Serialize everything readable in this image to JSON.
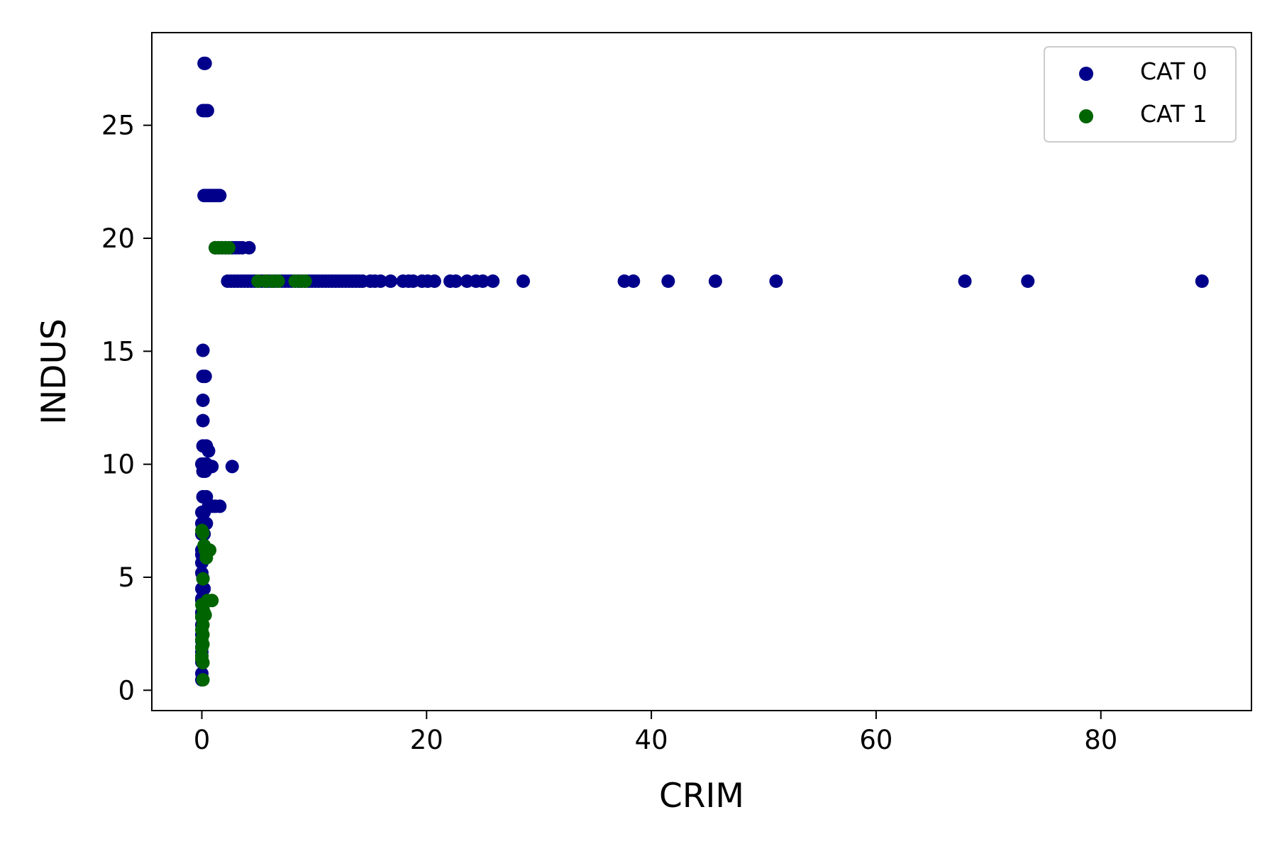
{
  "chart_data": {
    "type": "scatter",
    "title": "",
    "xlabel": "CRIM",
    "ylabel": "INDUS",
    "xlim": [
      -4.45,
      93.4
    ],
    "ylim": [
      -0.9,
      29.1
    ],
    "xticks": [
      0,
      20,
      40,
      60,
      80
    ],
    "yticks": [
      0,
      5,
      10,
      15,
      20,
      25
    ],
    "grid": false,
    "legend_position": "top-right",
    "series": [
      {
        "name": "CAT 0",
        "color": "#00008b",
        "points": [
          [
            0.2,
            27.74
          ],
          [
            0.3,
            27.74
          ],
          [
            0.1,
            25.65
          ],
          [
            0.3,
            25.65
          ],
          [
            0.5,
            25.65
          ],
          [
            0.2,
            21.89
          ],
          [
            0.4,
            21.89
          ],
          [
            0.6,
            21.89
          ],
          [
            0.8,
            21.89
          ],
          [
            1.0,
            21.89
          ],
          [
            1.2,
            21.89
          ],
          [
            1.4,
            21.89
          ],
          [
            1.6,
            21.89
          ],
          [
            1.2,
            19.58
          ],
          [
            1.5,
            19.58
          ],
          [
            1.8,
            19.58
          ],
          [
            2.1,
            19.58
          ],
          [
            2.4,
            19.58
          ],
          [
            2.7,
            19.58
          ],
          [
            3.0,
            19.58
          ],
          [
            3.3,
            19.58
          ],
          [
            3.6,
            19.58
          ],
          [
            4.2,
            19.58
          ],
          [
            2.3,
            18.1
          ],
          [
            2.6,
            18.1
          ],
          [
            2.9,
            18.1
          ],
          [
            3.2,
            18.1
          ],
          [
            3.5,
            18.1
          ],
          [
            3.8,
            18.1
          ],
          [
            4.1,
            18.1
          ],
          [
            4.4,
            18.1
          ],
          [
            4.7,
            18.1
          ],
          [
            5.0,
            18.1
          ],
          [
            5.3,
            18.1
          ],
          [
            5.6,
            18.1
          ],
          [
            5.9,
            18.1
          ],
          [
            6.2,
            18.1
          ],
          [
            6.5,
            18.1
          ],
          [
            6.8,
            18.1
          ],
          [
            7.1,
            18.1
          ],
          [
            7.4,
            18.1
          ],
          [
            7.7,
            18.1
          ],
          [
            8.0,
            18.1
          ],
          [
            8.3,
            18.1
          ],
          [
            8.6,
            18.1
          ],
          [
            8.9,
            18.1
          ],
          [
            9.2,
            18.1
          ],
          [
            9.5,
            18.1
          ],
          [
            9.8,
            18.1
          ],
          [
            10.1,
            18.1
          ],
          [
            10.4,
            18.1
          ],
          [
            10.7,
            18.1
          ],
          [
            11.0,
            18.1
          ],
          [
            11.3,
            18.1
          ],
          [
            11.6,
            18.1
          ],
          [
            11.9,
            18.1
          ],
          [
            12.2,
            18.1
          ],
          [
            12.5,
            18.1
          ],
          [
            12.8,
            18.1
          ],
          [
            13.1,
            18.1
          ],
          [
            13.4,
            18.1
          ],
          [
            13.7,
            18.1
          ],
          [
            14.0,
            18.1
          ],
          [
            14.3,
            18.1
          ],
          [
            15.0,
            18.1
          ],
          [
            15.4,
            18.1
          ],
          [
            15.9,
            18.1
          ],
          [
            16.8,
            18.1
          ],
          [
            17.9,
            18.1
          ],
          [
            18.4,
            18.1
          ],
          [
            18.8,
            18.1
          ],
          [
            19.6,
            18.1
          ],
          [
            20.1,
            18.1
          ],
          [
            20.7,
            18.1
          ],
          [
            22.1,
            18.1
          ],
          [
            22.6,
            18.1
          ],
          [
            23.6,
            18.1
          ],
          [
            24.4,
            18.1
          ],
          [
            25.0,
            18.1
          ],
          [
            25.9,
            18.1
          ],
          [
            28.6,
            18.1
          ],
          [
            37.6,
            18.1
          ],
          [
            38.4,
            18.1
          ],
          [
            41.5,
            18.1
          ],
          [
            45.7,
            18.1
          ],
          [
            51.1,
            18.1
          ],
          [
            67.9,
            18.1
          ],
          [
            73.5,
            18.1
          ],
          [
            89.0,
            18.1
          ],
          [
            0.1,
            15.04
          ],
          [
            0.1,
            13.89
          ],
          [
            0.3,
            13.89
          ],
          [
            0.1,
            12.83
          ],
          [
            0.1,
            11.93
          ],
          [
            0.1,
            10.81
          ],
          [
            0.4,
            10.81
          ],
          [
            0.6,
            10.59
          ],
          [
            0.0,
            10.01
          ],
          [
            0.2,
            10.01
          ],
          [
            0.4,
            10.01
          ],
          [
            0.9,
            9.9
          ],
          [
            2.7,
            9.9
          ],
          [
            0.1,
            9.69
          ],
          [
            0.3,
            9.69
          ],
          [
            0.1,
            8.56
          ],
          [
            0.4,
            8.56
          ],
          [
            0.6,
            8.14
          ],
          [
            0.9,
            8.14
          ],
          [
            1.2,
            8.14
          ],
          [
            1.6,
            8.14
          ],
          [
            0.0,
            7.87
          ],
          [
            0.2,
            7.87
          ],
          [
            0.0,
            7.38
          ],
          [
            0.4,
            7.38
          ],
          [
            0.0,
            6.91
          ],
          [
            0.2,
            6.91
          ],
          [
            0.0,
            6.2
          ],
          [
            0.4,
            6.2
          ],
          [
            0.0,
            6.0
          ],
          [
            0.1,
            5.86
          ],
          [
            0.0,
            5.64
          ],
          [
            0.0,
            5.19
          ],
          [
            0.1,
            4.95
          ],
          [
            0.0,
            4.49
          ],
          [
            0.2,
            4.49
          ],
          [
            0.0,
            4.05
          ],
          [
            0.0,
            3.97
          ],
          [
            0.0,
            3.44
          ],
          [
            0.0,
            3.41
          ],
          [
            0.0,
            3.24
          ],
          [
            0.0,
            2.89
          ],
          [
            0.0,
            2.46
          ],
          [
            0.0,
            2.18
          ],
          [
            0.0,
            1.91
          ],
          [
            0.0,
            1.69
          ],
          [
            0.0,
            1.52
          ],
          [
            0.0,
            1.25
          ],
          [
            0.0,
            0.74
          ],
          [
            0.0,
            0.46
          ]
        ]
      },
      {
        "name": "CAT 1",
        "color": "#006400",
        "points": [
          [
            1.2,
            19.58
          ],
          [
            1.5,
            19.58
          ],
          [
            1.8,
            19.58
          ],
          [
            2.1,
            19.58
          ],
          [
            2.4,
            19.58
          ],
          [
            5.0,
            18.1
          ],
          [
            5.7,
            18.1
          ],
          [
            6.3,
            18.1
          ],
          [
            6.8,
            18.1
          ],
          [
            8.3,
            18.1
          ],
          [
            8.8,
            18.1
          ],
          [
            9.2,
            18.1
          ],
          [
            0.0,
            7.07
          ],
          [
            0.1,
            6.96
          ],
          [
            0.2,
            6.41
          ],
          [
            0.3,
            6.2
          ],
          [
            0.4,
            6.2
          ],
          [
            0.7,
            6.2
          ],
          [
            0.4,
            5.86
          ],
          [
            0.1,
            4.93
          ],
          [
            0.5,
            3.97
          ],
          [
            0.9,
            3.97
          ],
          [
            0.0,
            3.78
          ],
          [
            0.1,
            3.64
          ],
          [
            0.2,
            3.44
          ],
          [
            0.3,
            3.33
          ],
          [
            0.0,
            3.24
          ],
          [
            0.1,
            2.89
          ],
          [
            0.0,
            2.68
          ],
          [
            0.1,
            2.46
          ],
          [
            0.0,
            2.24
          ],
          [
            0.1,
            2.03
          ],
          [
            0.0,
            1.89
          ],
          [
            0.0,
            1.52
          ],
          [
            0.0,
            1.38
          ],
          [
            0.1,
            1.22
          ],
          [
            0.1,
            0.46
          ]
        ]
      }
    ]
  }
}
